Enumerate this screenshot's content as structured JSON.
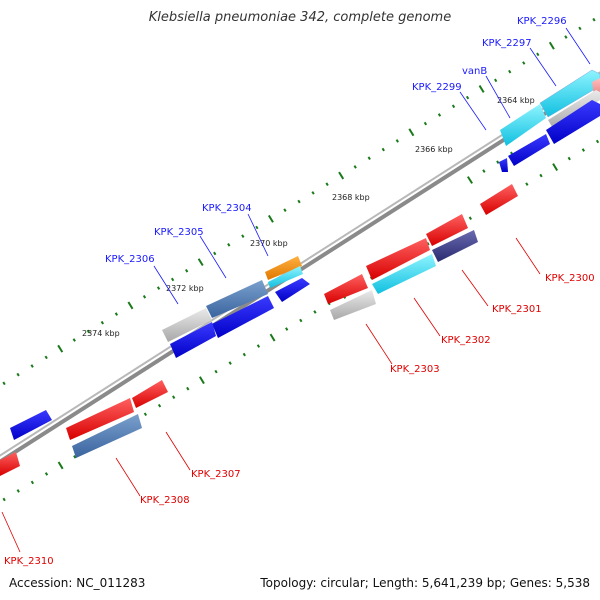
{
  "title": "Klebsiella pneumoniae 342, complete genome",
  "accession_text": "Accession: NC_011283",
  "summary_text": "Topology: circular; Length: 5,641,239 bp; Genes: 5,538",
  "colors": {
    "forward_label": "#1a1aff",
    "reverse_label": "#e00000",
    "backbone": "#8a8a8a",
    "tick": "#1a7a1a"
  },
  "axis_ticks": [
    "2364 kbp",
    "2366 kbp",
    "2368 kbp",
    "2370 kbp",
    "2372 kbp",
    "2374 kbp"
  ],
  "genes_forward": [
    {
      "id": "KPK_2296",
      "label": "KPK_2296"
    },
    {
      "id": "KPK_2297",
      "label": "KPK_2297"
    },
    {
      "id": "vanB",
      "label": "vanB"
    },
    {
      "id": "KPK_2299",
      "label": "KPK_2299"
    },
    {
      "id": "KPK_2304",
      "label": "KPK_2304"
    },
    {
      "id": "KPK_2305",
      "label": "KPK_2305"
    },
    {
      "id": "KPK_2306",
      "label": "KPK_2306"
    }
  ],
  "genes_reverse": [
    {
      "id": "KPK_2300",
      "label": "KPK_2300"
    },
    {
      "id": "KPK_2301",
      "label": "KPK_2301"
    },
    {
      "id": "KPK_2302",
      "label": "KPK_2302"
    },
    {
      "id": "KPK_2303",
      "label": "KPK_2303"
    },
    {
      "id": "KPK_2307",
      "label": "KPK_2307"
    },
    {
      "id": "KPK_2308",
      "label": "KPK_2308"
    },
    {
      "id": "KPK_2310",
      "label": "KPK_2310"
    }
  ]
}
